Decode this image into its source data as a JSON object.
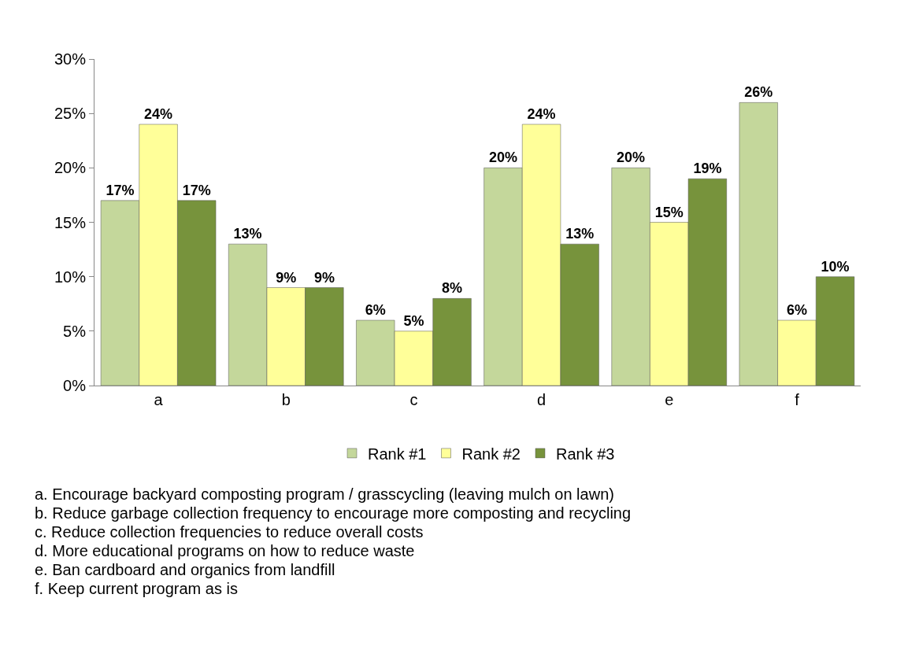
{
  "chart_data": {
    "type": "bar",
    "categories": [
      "a",
      "b",
      "c",
      "d",
      "e",
      "f"
    ],
    "series": [
      {
        "name": "Rank #1",
        "color": "#c4d79b",
        "values": [
          17,
          13,
          6,
          20,
          20,
          26
        ],
        "value_labels": [
          "17%",
          "13%",
          "6%",
          "20%",
          "20%",
          "26%"
        ]
      },
      {
        "name": "Rank #2",
        "color": "#ffff99",
        "values": [
          24,
          9,
          5,
          24,
          15,
          6
        ],
        "value_labels": [
          "24%",
          "9%",
          "5%",
          "24%",
          "15%",
          "6%"
        ]
      },
      {
        "name": "Rank #3",
        "color": "#77933c",
        "values": [
          17,
          9,
          8,
          13,
          19,
          10
        ],
        "value_labels": [
          "17%",
          "9%",
          "8%",
          "13%",
          "19%",
          "10%"
        ]
      }
    ],
    "ylim": [
      0,
      30
    ],
    "yticks": [
      {
        "value": 0,
        "label": "0%"
      },
      {
        "value": 5,
        "label": "5%"
      },
      {
        "value": 10,
        "label": "10%"
      },
      {
        "value": 15,
        "label": "15%"
      },
      {
        "value": 20,
        "label": "20%"
      },
      {
        "value": 25,
        "label": "25%"
      },
      {
        "value": 30,
        "label": "30%"
      }
    ],
    "grid": false,
    "legend": "bottom",
    "annotations": [
      "a. Encourage backyard composting program / grasscycling (leaving mulch on lawn)",
      "b. Reduce garbage collection frequency to encourage more composting and recycling",
      "c. Reduce collection frequencies to reduce overall costs",
      "d. More educational programs on how to reduce waste",
      "e. Ban cardboard and organics from landfill",
      "f. Keep current program as is"
    ]
  }
}
